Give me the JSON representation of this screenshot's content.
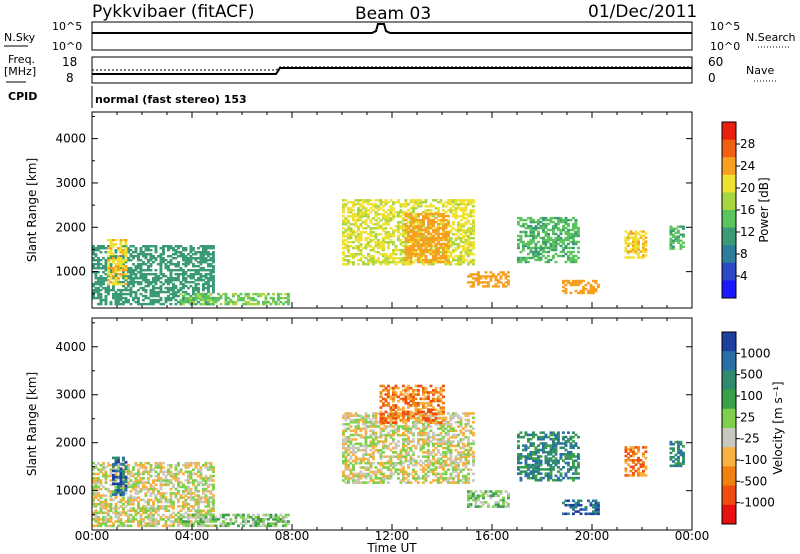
{
  "header": {
    "station": "Pykkvibaer (fitACF)",
    "beam": "Beam 03",
    "date": "01/Dec/2011"
  },
  "top_panels": {
    "nsky_label": "N.Sky",
    "nsearch_label": "N.Search",
    "nsky_ticks": [
      "10^5",
      "10^0"
    ],
    "nsearch_ticks": [
      "10^5",
      "10^0"
    ],
    "freq_label_1": "Freq.",
    "freq_label_2": "[MHz]",
    "freq_ticks": [
      "18",
      "8"
    ],
    "nave_label": "Nave",
    "nave_ticks": [
      "60",
      "0"
    ],
    "cpid_label": "CPID",
    "cpid_text": "normal (fast stereo) 153"
  },
  "chart_data": [
    {
      "type": "heatmap",
      "name": "power",
      "ylabel": "Slant Range [km]",
      "ylim": [
        180,
        4600
      ],
      "yticks": [
        1000,
        2000,
        3000,
        4000
      ],
      "xlim": [
        0,
        24
      ],
      "colorbar": {
        "label": "Power [dB]",
        "range": [
          0,
          32
        ],
        "ticks": [
          "4",
          "8",
          "12",
          "16",
          "20",
          "24",
          "28"
        ],
        "colors": [
          "#1a1aff",
          "#2c48c4",
          "#2f7d9c",
          "#3a9a76",
          "#5cc45c",
          "#a8d640",
          "#f0e030",
          "#f7a020",
          "#f06010",
          "#e82010"
        ]
      },
      "regions": [
        {
          "t0": 0.0,
          "t1": 4.8,
          "r0": 250,
          "r1": 1600,
          "level": 10
        },
        {
          "t0": 0.6,
          "t1": 1.4,
          "r0": 700,
          "r1": 1700,
          "level": 20
        },
        {
          "t0": 3.5,
          "t1": 7.8,
          "r0": 250,
          "r1": 500,
          "level": 14
        },
        {
          "t0": 10.0,
          "t1": 15.2,
          "r0": 1150,
          "r1": 2600,
          "level": 18
        },
        {
          "t0": 12.5,
          "t1": 14.2,
          "r0": 1200,
          "r1": 2300,
          "level": 22
        },
        {
          "t0": 15.0,
          "t1": 16.7,
          "r0": 650,
          "r1": 1000,
          "level": 22
        },
        {
          "t0": 17.0,
          "t1": 19.5,
          "r0": 1200,
          "r1": 2200,
          "level": 12
        },
        {
          "t0": 18.8,
          "t1": 20.3,
          "r0": 500,
          "r1": 800,
          "level": 22
        },
        {
          "t0": 21.3,
          "t1": 22.2,
          "r0": 1300,
          "r1": 1900,
          "level": 20
        },
        {
          "t0": 23.1,
          "t1": 23.7,
          "r0": 1500,
          "r1": 2000,
          "level": 12
        }
      ]
    },
    {
      "type": "heatmap",
      "name": "velocity",
      "xlabel": "Time UT",
      "ylabel": "Slant Range [km]",
      "ylim": [
        180,
        4600
      ],
      "yticks": [
        1000,
        2000,
        3000,
        4000
      ],
      "xlim": [
        0,
        24
      ],
      "xticks": [
        "00:00",
        "04:00",
        "08:00",
        "12:00",
        "16:00",
        "20:00",
        "00:00"
      ],
      "colorbar": {
        "label": "Velocity [m s⁻¹]",
        "ticks": [
          "1000",
          "500",
          "100",
          "25",
          "-25",
          "-100",
          "-500",
          "-1000"
        ],
        "colors": [
          "#1f3f9f",
          "#2a6fa8",
          "#2f8a6e",
          "#3aa14a",
          "#7fd04a",
          "#c8c8c0",
          "#f8b040",
          "#f08010",
          "#f04c10",
          "#e81010"
        ]
      },
      "regions": [
        {
          "t0": 0.0,
          "t1": 4.8,
          "r0": 250,
          "r1": 1600,
          "level": 5
        },
        {
          "t0": 0.8,
          "t1": 1.4,
          "r0": 900,
          "r1": 1700,
          "level": 1
        },
        {
          "t0": 3.5,
          "t1": 7.8,
          "r0": 250,
          "r1": 500,
          "level": 4
        },
        {
          "t0": 10.0,
          "t1": 15.2,
          "r0": 1150,
          "r1": 2600,
          "level": 5
        },
        {
          "t0": 11.5,
          "t1": 14.0,
          "r0": 2400,
          "r1": 3200,
          "level": 7
        },
        {
          "t0": 15.0,
          "t1": 16.7,
          "r0": 650,
          "r1": 1000,
          "level": 4
        },
        {
          "t0": 17.0,
          "t1": 19.5,
          "r0": 1200,
          "r1": 2200,
          "level": 2
        },
        {
          "t0": 18.8,
          "t1": 20.3,
          "r0": 500,
          "r1": 800,
          "level": 1
        },
        {
          "t0": 21.3,
          "t1": 22.2,
          "r0": 1300,
          "r1": 1900,
          "level": 7
        },
        {
          "t0": 23.1,
          "t1": 23.7,
          "r0": 1500,
          "r1": 2000,
          "level": 2
        }
      ]
    }
  ]
}
